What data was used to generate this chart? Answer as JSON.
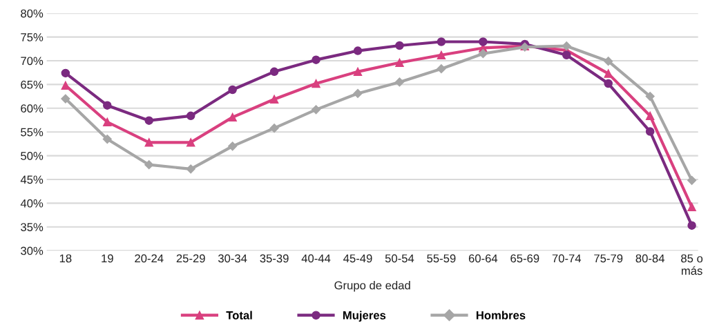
{
  "chart_data": {
    "type": "line",
    "xlabel": "Grupo de edad",
    "categories": [
      "18",
      "19",
      "20-24",
      "25-29",
      "30-34",
      "35-39",
      "40-44",
      "45-49",
      "50-54",
      "55-59",
      "60-64",
      "65-69",
      "70-74",
      "75-79",
      "80-84",
      "85 o\nmás"
    ],
    "series": [
      {
        "name": "Total",
        "color": "#d9407f",
        "marker": "triangle",
        "values": [
          64.8,
          57.1,
          52.8,
          52.8,
          58.1,
          61.9,
          65.2,
          67.7,
          69.6,
          71.2,
          72.7,
          73.1,
          72.2,
          67.3,
          58.4,
          39.2
        ]
      },
      {
        "name": "Mujeres",
        "color": "#7b2a80",
        "marker": "circle",
        "values": [
          67.4,
          60.6,
          57.4,
          58.4,
          63.9,
          67.7,
          70.2,
          72.1,
          73.2,
          74.0,
          74.0,
          73.5,
          71.2,
          65.2,
          55.1,
          35.3
        ]
      },
      {
        "name": "Hombres",
        "color": "#a6a6a6",
        "marker": "diamond",
        "values": [
          62.0,
          53.5,
          48.1,
          47.2,
          52.0,
          55.8,
          59.7,
          63.1,
          65.5,
          68.3,
          71.5,
          72.9,
          73.1,
          69.9,
          62.5,
          44.8
        ]
      }
    ],
    "ylim": [
      30,
      80
    ],
    "yticks": [
      {
        "value": 30,
        "label": "30%"
      },
      {
        "value": 35,
        "label": "35%"
      },
      {
        "value": 40,
        "label": "40%"
      },
      {
        "value": 45,
        "label": "45%"
      },
      {
        "value": 50,
        "label": "50%"
      },
      {
        "value": 55,
        "label": "55%"
      },
      {
        "value": 60,
        "label": "60%"
      },
      {
        "value": 65,
        "label": "65%"
      },
      {
        "value": 70,
        "label": "70%"
      },
      {
        "value": 75,
        "label": "75%"
      },
      {
        "value": 80,
        "label": "80%"
      }
    ],
    "grid": "y",
    "legend": "bottom",
    "line_style": "solid"
  }
}
